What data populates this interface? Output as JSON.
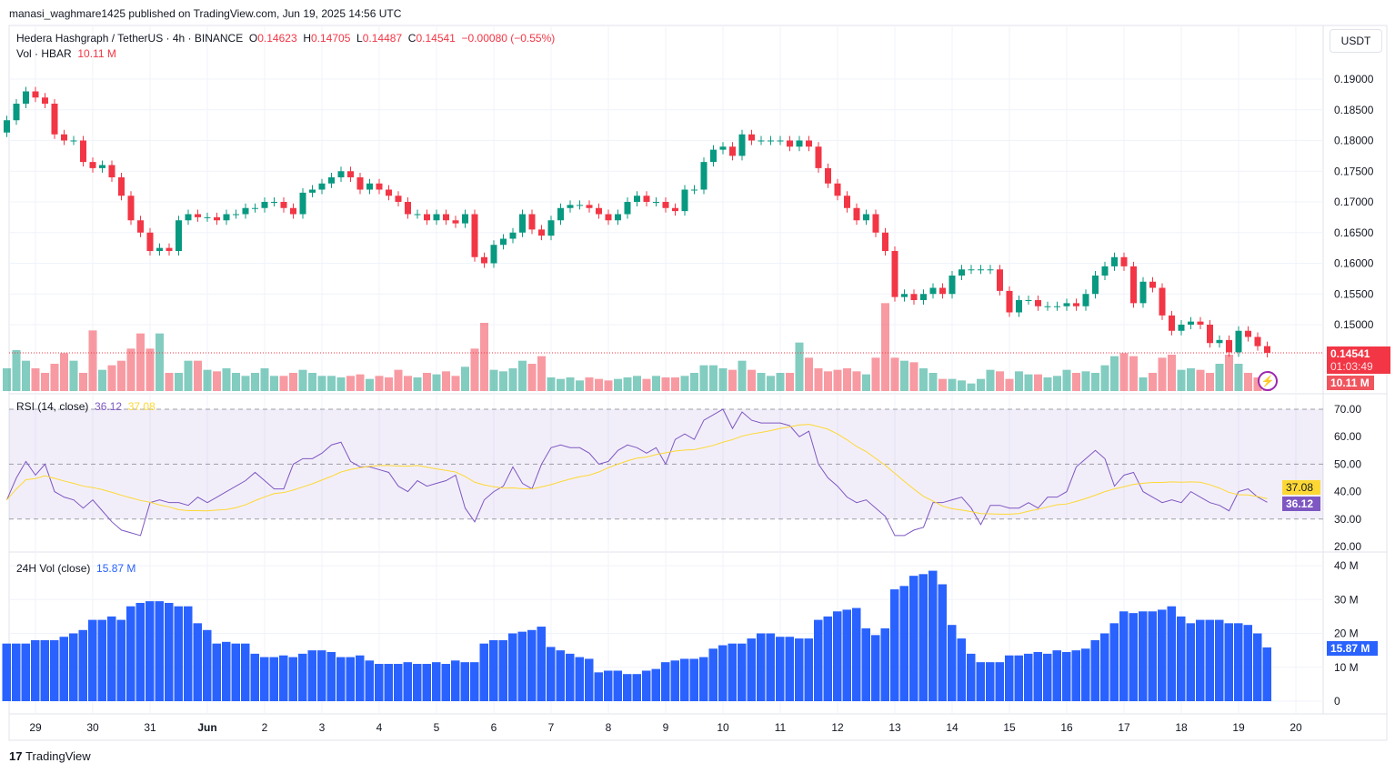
{
  "published": "manasi_waghmare1425 published on TradingView.com, Jun 19, 2025 14:56 UTC",
  "legend": {
    "symbol": "Hedera Hashgraph / TetherUS · 4h · BINANCE",
    "o_label": "O",
    "o": "0.14623",
    "h_label": "H",
    "h": "0.14705",
    "l_label": "L",
    "l": "0.14487",
    "c_label": "C",
    "c": "0.14541",
    "change": "−0.00080 (−0.55%)",
    "vol_label": "Vol · HBAR",
    "vol": "10.11 M"
  },
  "currency_button": "USDT",
  "badges": {
    "price": "0.14541",
    "countdown": "01:03:49",
    "volume": "10.11 M",
    "rsi_ma": "37.08",
    "rsi": "36.12",
    "vol24": "15.87 M"
  },
  "rsi_legend": {
    "label": "RSI (14, close)",
    "rsi": "36.12",
    "ma": "37.08"
  },
  "vol24_legend": {
    "label": "24H Vol (close)",
    "value": "15.87 M"
  },
  "footer_logo": "TradingView",
  "colors": {
    "up": "#089981",
    "down": "#f23645",
    "rsi": "#7e57c2",
    "rsi_ma": "#fdd835",
    "vol24": "#2962ff"
  },
  "chart_data": [
    {
      "type": "candlestick",
      "interval": "4h",
      "x_tick_labels": [
        "29",
        "30",
        "31",
        "Jun",
        "2",
        "3",
        "4",
        "5",
        "6",
        "7",
        "8",
        "9",
        "10",
        "11",
        "12",
        "13",
        "14",
        "15",
        "16",
        "17",
        "18",
        "19",
        "20"
      ],
      "y_tick_labels": [
        "0.19000",
        "0.18500",
        "0.18000",
        "0.17500",
        "0.17000",
        "0.16500",
        "0.16000",
        "0.15500",
        "0.15000"
      ],
      "ylim": [
        0.1425,
        0.1955
      ],
      "close": [
        0.1833,
        0.186,
        0.188,
        0.187,
        0.186,
        0.181,
        0.18,
        0.18,
        0.1765,
        0.1755,
        0.176,
        0.174,
        0.171,
        0.167,
        0.165,
        0.162,
        0.1625,
        0.162,
        0.167,
        0.168,
        0.1675,
        0.1675,
        0.167,
        0.168,
        0.168,
        0.169,
        0.169,
        0.17,
        0.17,
        0.169,
        0.168,
        0.1715,
        0.172,
        0.173,
        0.174,
        0.175,
        0.174,
        0.172,
        0.173,
        0.172,
        0.171,
        0.17,
        0.168,
        0.168,
        0.167,
        0.168,
        0.167,
        0.1665,
        0.168,
        0.161,
        0.16,
        0.163,
        0.164,
        0.165,
        0.168,
        0.1655,
        0.1645,
        0.167,
        0.169,
        0.1695,
        0.1695,
        0.169,
        0.168,
        0.167,
        0.168,
        0.17,
        0.171,
        0.17,
        0.17,
        0.169,
        0.1685,
        0.172,
        0.172,
        0.1765,
        0.1785,
        0.179,
        0.1775,
        0.181,
        0.18,
        0.18,
        0.18,
        0.18,
        0.179,
        0.18,
        0.179,
        0.1755,
        0.173,
        0.171,
        0.169,
        0.167,
        0.168,
        0.165,
        0.162,
        0.1545,
        0.155,
        0.154,
        0.155,
        0.156,
        0.155,
        0.158,
        0.159,
        0.159,
        0.159,
        0.159,
        0.1555,
        0.152,
        0.154,
        0.154,
        0.153,
        0.153,
        0.153,
        0.1535,
        0.153,
        0.155,
        0.158,
        0.1595,
        0.161,
        0.1595,
        0.1535,
        0.157,
        0.156,
        0.1515,
        0.149,
        0.15,
        0.1505,
        0.15,
        0.147,
        0.1475,
        0.1455,
        0.149,
        0.148,
        0.1465,
        0.14541
      ],
      "volume_m": [
        15,
        27,
        20,
        15,
        12,
        18,
        25,
        20,
        12,
        40,
        14,
        17,
        20,
        28,
        38,
        28,
        38,
        12,
        12,
        20,
        20,
        14,
        13,
        15,
        12,
        10,
        12,
        15,
        10,
        10,
        12,
        14,
        12,
        10,
        10,
        9,
        10,
        11,
        8,
        10,
        9,
        14,
        10,
        9,
        12,
        11,
        13,
        10,
        16,
        28,
        45,
        14,
        13,
        15,
        20,
        18,
        23,
        9,
        8,
        9,
        7,
        9,
        8,
        7,
        8,
        9,
        10,
        8,
        10,
        9,
        9,
        10,
        12,
        17,
        17,
        15,
        14,
        20,
        14,
        12,
        10,
        12,
        12,
        32,
        22,
        15,
        13,
        14,
        15,
        13,
        11,
        22,
        58,
        22,
        20,
        19,
        15,
        12,
        8,
        8,
        7,
        5,
        8,
        14,
        13,
        8,
        13,
        11,
        11,
        9,
        10,
        14,
        12,
        13,
        12,
        17,
        23,
        25,
        23,
        9,
        12,
        22,
        24,
        14,
        15,
        14,
        12,
        18,
        24,
        18,
        12,
        9,
        10.11
      ]
    },
    {
      "type": "line",
      "title": "RSI (14, close)",
      "y_tick_labels": [
        "70.00",
        "60.00",
        "50.00",
        "40.00",
        "30.00",
        "20.00"
      ],
      "ylim": [
        20,
        70
      ],
      "bands": [
        30,
        50,
        70
      ],
      "rsi": [
        37,
        45,
        51,
        46,
        50,
        40,
        38,
        37,
        34,
        37,
        33,
        29,
        26,
        25,
        24,
        36,
        37,
        36,
        36,
        35,
        38,
        36,
        38,
        40,
        42,
        44,
        47,
        44,
        41,
        41,
        50,
        52,
        52,
        54,
        57,
        58,
        51,
        49,
        49,
        48,
        47,
        42,
        40,
        44,
        42,
        43,
        44,
        46,
        34,
        29,
        37,
        40,
        42,
        49,
        43,
        41,
        50,
        56,
        57,
        56,
        56,
        54,
        50,
        51,
        55,
        57,
        56,
        54,
        56,
        50,
        59,
        61,
        59,
        66,
        68,
        70,
        63,
        69,
        66,
        65,
        65,
        65,
        64,
        60,
        62,
        50,
        45,
        42,
        38,
        36,
        37,
        34,
        31,
        24,
        24,
        26,
        27,
        36,
        36,
        37,
        38,
        34,
        28,
        35,
        35,
        34,
        34,
        36,
        34,
        38,
        38,
        40,
        49,
        52,
        55,
        52,
        42,
        46,
        47,
        40,
        38,
        36,
        37,
        36,
        40,
        38,
        36,
        35,
        33,
        40,
        41,
        38,
        36.12
      ]
    },
    {
      "type": "bar",
      "title": "24H Vol (close)",
      "y_tick_labels": [
        "40 M",
        "30 M",
        "20 M",
        "10 M",
        "0"
      ],
      "ylim": [
        0,
        40
      ],
      "values_m": [
        17,
        17,
        17,
        18,
        18,
        18,
        19,
        20,
        21,
        24,
        24,
        25,
        24,
        28,
        29,
        29.5,
        29.5,
        29,
        28,
        28,
        23,
        21,
        17,
        17.5,
        17,
        17,
        14,
        13,
        13,
        13.5,
        13,
        14,
        15,
        15,
        14.5,
        13,
        13,
        13.5,
        12,
        11,
        11,
        11,
        11.5,
        11,
        11,
        11.5,
        11,
        12,
        11.5,
        11.5,
        17,
        18,
        18,
        20,
        20.5,
        21,
        22,
        16,
        15,
        14,
        13,
        12.5,
        8.5,
        9,
        9,
        8,
        8,
        9,
        9.5,
        11.5,
        12,
        12.5,
        12.5,
        13,
        15.5,
        16.5,
        17,
        17,
        18.5,
        20,
        20,
        19,
        19,
        18.5,
        18.5,
        24,
        25,
        26.5,
        27,
        27.5,
        21.5,
        19.5,
        21.5,
        33,
        34,
        37,
        37.5,
        38.5,
        34.5,
        22.5,
        18.5,
        14,
        11.5,
        11.5,
        11.5,
        13.5,
        13.5,
        14,
        14.5,
        14,
        15,
        14.5,
        15,
        15.5,
        18,
        20,
        23,
        26.5,
        26,
        26.5,
        26.5,
        27,
        28,
        25,
        23,
        24,
        24,
        24,
        23,
        23,
        22.5,
        20,
        15.87
      ]
    }
  ]
}
